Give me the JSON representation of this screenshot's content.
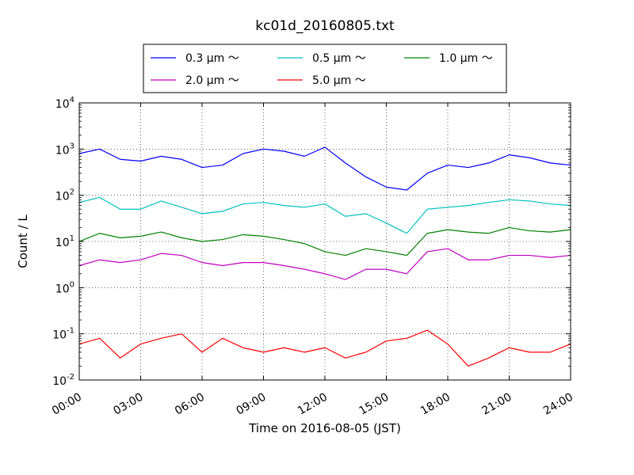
{
  "chart_data": {
    "type": "line",
    "title": "kc01d_20160805.txt",
    "xlabel": "Time on 2016-08-05 (JST)",
    "ylabel": "Count / L",
    "xlim": [
      "00:00",
      "24:00"
    ],
    "ylim": [
      0.01,
      10000
    ],
    "yscale": "log",
    "grid": true,
    "legend_position": "top-center",
    "x_ticks": [
      "00:00",
      "03:00",
      "06:00",
      "09:00",
      "12:00",
      "15:00",
      "18:00",
      "21:00",
      "24:00"
    ],
    "y_ticks": [
      {
        "base": "10",
        "exp": "-2"
      },
      {
        "base": "10",
        "exp": "-1"
      },
      {
        "base": "10",
        "exp": "0"
      },
      {
        "base": "10",
        "exp": "1"
      },
      {
        "base": "10",
        "exp": "2"
      },
      {
        "base": "10",
        "exp": "3"
      },
      {
        "base": "10",
        "exp": "4"
      }
    ],
    "x_hours": [
      0,
      1,
      2,
      3,
      4,
      5,
      6,
      7,
      8,
      9,
      10,
      11,
      12,
      13,
      14,
      15,
      16,
      17,
      18,
      19,
      20,
      21,
      22,
      23,
      24
    ],
    "series": [
      {
        "name": "0.3 μm ～",
        "color": "#0000ff",
        "values": [
          800,
          1000,
          600,
          550,
          700,
          600,
          400,
          450,
          800,
          1000,
          900,
          700,
          1100,
          500,
          250,
          150,
          130,
          300,
          450,
          400,
          500,
          750,
          650,
          500,
          450
        ]
      },
      {
        "name": "0.5 μm ～",
        "color": "#00bfbf",
        "values": [
          70,
          90,
          50,
          50,
          75,
          55,
          40,
          45,
          65,
          70,
          60,
          55,
          65,
          35,
          40,
          25,
          15,
          50,
          55,
          60,
          70,
          80,
          75,
          65,
          60
        ]
      },
      {
        "name": "1.0 μm ～",
        "color": "#008000",
        "values": [
          10,
          15,
          12,
          13,
          16,
          12,
          10,
          11,
          14,
          13,
          11,
          9,
          6,
          5,
          7,
          6,
          5,
          15,
          18,
          16,
          15,
          20,
          17,
          16,
          18
        ]
      },
      {
        "name": "2.0 μm ～",
        "color": "#bf00bf",
        "values": [
          3,
          4,
          3.5,
          4,
          5.5,
          5,
          3.5,
          3,
          3.5,
          3.5,
          3,
          2.5,
          2,
          1.5,
          2.5,
          2.5,
          2,
          6,
          7,
          4,
          4,
          5,
          5,
          4.5,
          5
        ]
      },
      {
        "name": "5.0 μm ～",
        "color": "#ff0000",
        "values": [
          0.06,
          0.08,
          0.03,
          0.06,
          0.08,
          0.1,
          0.04,
          0.08,
          0.05,
          0.04,
          0.05,
          0.04,
          0.05,
          0.03,
          0.04,
          0.07,
          0.08,
          0.12,
          0.06,
          0.02,
          0.03,
          0.05,
          0.04,
          0.04,
          0.06
        ]
      }
    ]
  }
}
